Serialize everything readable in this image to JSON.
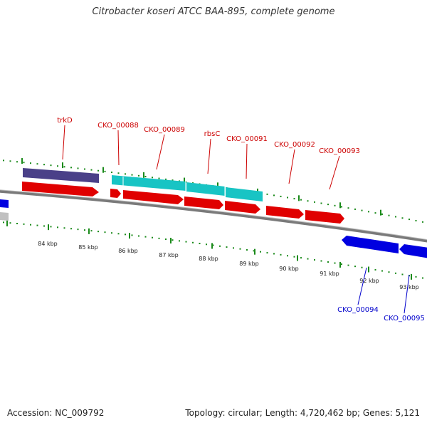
{
  "title": "Citrobacter koseri ATCC BAA-895, complete genome",
  "accession": "Accession: NC_009792",
  "summary": "Topology: circular; Length: 4,720,462 bp; Genes: 5,121",
  "colors": {
    "forward_gene": "#ff0000",
    "reverse_gene": "#0000ff",
    "cds_cyan": "#18c4c4",
    "cds_purple": "#4a4088",
    "label_forward": "#cc0000",
    "label_reverse": "#0000cc",
    "tick": "#1a8a1a",
    "backbone": "#7a7a7a"
  },
  "scale": {
    "ticks": [
      "84 kbp",
      "85 kbp",
      "86 kbp",
      "87 kbp",
      "88 kbp",
      "89 kbp",
      "90 kbp",
      "91 kbp",
      "92 kbp",
      "93 kbp"
    ]
  },
  "genes_forward": [
    "trkD",
    "CKO_00088",
    "CKO_00089",
    "rbsC",
    "CKO_00091",
    "CKO_00092",
    "CKO_00093"
  ],
  "genes_reverse": [
    "CKO_00094",
    "CKO_00095"
  ]
}
